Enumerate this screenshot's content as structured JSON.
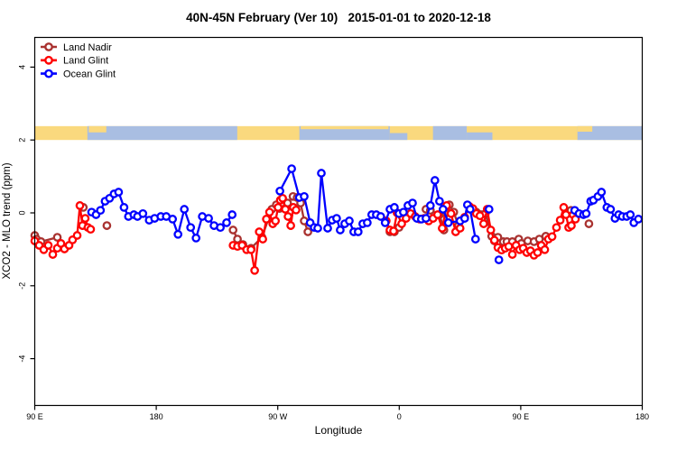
{
  "header": {
    "title": "40N-45N February (Ver 10)",
    "date_range": "2015-01-01 to 2020-12-18",
    "title_separator": "   "
  },
  "chart_data": {
    "type": "line",
    "title": "40N-45N February (Ver 10)   2015-01-01 to 2020-12-18",
    "xlabel": "Longitude",
    "ylabel": "XCO2 - MLO trend (ppm)",
    "x_axis": {
      "note": "longitude axis wraps eastward starting at 90E; deg = degrees east of 90E",
      "range_deg": [
        0,
        450
      ],
      "ticks": [
        {
          "deg": 0,
          "label": "90 E"
        },
        {
          "deg": 90,
          "label": "180"
        },
        {
          "deg": 180,
          "label": "90 W"
        },
        {
          "deg": 270,
          "label": "0"
        },
        {
          "deg": 360,
          "label": "90 E"
        },
        {
          "deg": 450,
          "label": "180"
        }
      ]
    },
    "y_axis": {
      "range": [
        -5.3,
        4.8
      ],
      "ticks": [
        -4,
        -2,
        0,
        2,
        4
      ]
    },
    "legend": {
      "position": "top-left",
      "items": [
        {
          "name": "Land Nadir",
          "color": "#A93230"
        },
        {
          "name": "Land Glint",
          "color": "#FF0000"
        },
        {
          "name": "Ocean Glint",
          "color": "#0000FF"
        }
      ]
    },
    "map_band": {
      "comment": "latitude-strip mini map drawn across the plot near y=2.2 ppm",
      "y_top_value": 2.38,
      "y_bottom_value": 2.0,
      "land_color": "#FAD97E",
      "ocean_color": "#A9BEE2",
      "segments": [
        {
          "from": 39,
          "to": 150,
          "color": "ocean",
          "vspan": [
            0,
            1
          ]
        },
        {
          "from": 196,
          "to": 263,
          "color": "ocean",
          "vspan": [
            0,
            1
          ]
        },
        {
          "from": 402,
          "to": 450,
          "color": "ocean",
          "vspan": [
            0,
            1
          ]
        },
        {
          "from": 40,
          "to": 53,
          "color": "land",
          "vspan": [
            0,
            0.45
          ]
        },
        {
          "from": 197,
          "to": 262,
          "color": "land",
          "vspan": [
            0,
            0.22
          ]
        },
        {
          "from": 263,
          "to": 276,
          "color": "ocean",
          "vspan": [
            0.5,
            1
          ]
        },
        {
          "from": 295,
          "to": 320,
          "color": "ocean",
          "vspan": [
            0,
            1
          ]
        },
        {
          "from": 320,
          "to": 339,
          "color": "ocean",
          "vspan": [
            0.45,
            1
          ]
        },
        {
          "from": 402,
          "to": 413,
          "color": "land",
          "vspan": [
            0,
            0.4
          ]
        }
      ]
    },
    "series": [
      {
        "name": "Land Nadir",
        "color": "#A93230",
        "segments": [
          [
            [
              0,
              -0.62
            ],
            [
              1.3,
              -0.72
            ],
            [
              4.7,
              -0.79
            ],
            [
              16.7,
              -0.67
            ]
          ],
          [
            [
              36.0,
              0.15
            ]
          ],
          [
            [
              53.4,
              -0.35
            ]
          ],
          [
            [
              146.9,
              -0.47
            ],
            [
              150.2,
              -0.72
            ],
            [
              154.2,
              -0.87
            ],
            [
              160.2,
              -0.97
            ],
            [
              168.3,
              -0.67
            ],
            [
              175.6,
              0.1
            ],
            [
              178.9,
              0.22
            ],
            [
              181.3,
              0.12
            ],
            [
              187.3,
              0.27
            ],
            [
              191.3,
              0.45
            ],
            [
              194.3,
              0.42
            ],
            [
              196.9,
              0.27
            ],
            [
              199.6,
              -0.22
            ],
            [
              202.3,
              -0.52
            ]
          ],
          [
            [
              263.1,
              -0.52
            ],
            [
              266.4,
              -0.52
            ],
            [
              269.8,
              -0.4
            ]
          ],
          [
            [
              289.8,
              0.1
            ],
            [
              293.1,
              0.07
            ],
            [
              299.8,
              -0.05
            ],
            [
              303.1,
              -0.47
            ],
            [
              307.1,
              0.22
            ],
            [
              310.4,
              0.02
            ],
            [
              313.8,
              -0.35
            ]
          ],
          [
            [
              327.1,
              0.02
            ],
            [
              330.5,
              -0.05
            ],
            [
              333.8,
              -0.02
            ],
            [
              338.5,
              -0.64
            ],
            [
              340.5,
              -0.77
            ],
            [
              343.1,
              -0.67
            ],
            [
              347.1,
              -0.79
            ],
            [
              349.8,
              -0.79
            ],
            [
              353.8,
              -0.79
            ],
            [
              358.5,
              -0.72
            ],
            [
              360.5,
              -0.84
            ],
            [
              365.2,
              -0.77
            ],
            [
              369.8,
              -0.79
            ],
            [
              373.8,
              -0.72
            ],
            [
              378.5,
              -0.64
            ]
          ],
          [
            [
              397.2,
              0.07
            ]
          ],
          [
            [
              410.5,
              -0.3
            ]
          ]
        ]
      },
      {
        "name": "Land Glint",
        "color": "#FF0000",
        "segments": [
          [
            [
              0,
              -0.77
            ],
            [
              3.3,
              -0.89
            ],
            [
              6.7,
              -1.01
            ],
            [
              10,
              -0.89
            ],
            [
              13.4,
              -1.14
            ],
            [
              16.7,
              -0.97
            ],
            [
              19.4,
              -0.84
            ],
            [
              22,
              -0.99
            ],
            [
              25.4,
              -0.89
            ],
            [
              28,
              -0.74
            ],
            [
              31.4,
              -0.62
            ],
            [
              33.4,
              0.2
            ],
            [
              35.4,
              -0.35
            ],
            [
              37.4,
              -0.15
            ],
            [
              39.4,
              -0.4
            ],
            [
              41.4,
              -0.45
            ]
          ],
          [
            [
              146.9,
              -0.89
            ],
            [
              150.2,
              -0.92
            ],
            [
              153.6,
              -0.89
            ],
            [
              156.9,
              -1.01
            ],
            [
              160.2,
              -1.01
            ],
            [
              162.9,
              -1.58
            ],
            [
              166.3,
              -0.52
            ],
            [
              168.9,
              -0.72
            ],
            [
              171.6,
              -0.17
            ],
            [
              173.9,
              0.02
            ],
            [
              176.3,
              -0.3
            ],
            [
              178.3,
              -0.22
            ],
            [
              180.3,
              0.15
            ],
            [
              181.9,
              0.35
            ],
            [
              183.6,
              0.4
            ],
            [
              185.6,
              0.1
            ],
            [
              187.6,
              -0.1
            ],
            [
              189.6,
              -0.35
            ],
            [
              191.6,
              0.15
            ],
            [
              193.6,
              0.08
            ]
          ],
          [
            [
              260.4,
              -0.22
            ],
            [
              263.1,
              -0.47
            ],
            [
              265.8,
              -0.5
            ],
            [
              268.4,
              0.0
            ],
            [
              271.8,
              -0.3
            ],
            [
              275.1,
              -0.15
            ],
            [
              278.4,
              -0.02
            ],
            [
              281.8,
              -0.1
            ],
            [
              285.1,
              -0.17
            ],
            [
              288.4,
              -0.15
            ],
            [
              291.8,
              -0.22
            ],
            [
              295.1,
              -0.15
            ],
            [
              298.4,
              -0.05
            ],
            [
              301.8,
              -0.42
            ],
            [
              305.1,
              0.2
            ],
            [
              308.4,
              -0.02
            ],
            [
              311.8,
              -0.52
            ],
            [
              315.1,
              -0.42
            ],
            [
              318.5,
              -0.12
            ],
            [
              321.8,
              0.18
            ],
            [
              324.5,
              0.12
            ],
            [
              327.1,
              -0.02
            ],
            [
              329.8,
              -0.08
            ],
            [
              332.5,
              -0.3
            ],
            [
              335.1,
              0.1
            ],
            [
              337.8,
              -0.47
            ],
            [
              340.5,
              -0.75
            ],
            [
              343.1,
              -0.95
            ],
            [
              345.8,
              -1.02
            ],
            [
              348.5,
              -0.97
            ],
            [
              351.1,
              -0.92
            ],
            [
              353.8,
              -1.14
            ],
            [
              356.5,
              -0.89
            ],
            [
              359.2,
              -1.01
            ],
            [
              361.8,
              -0.97
            ],
            [
              364.5,
              -1.09
            ],
            [
              367.2,
              -1.04
            ],
            [
              369.8,
              -1.16
            ],
            [
              372.5,
              -1.09
            ],
            [
              375.2,
              -0.89
            ],
            [
              377.8,
              -1.01
            ],
            [
              380.5,
              -0.72
            ],
            [
              383.2,
              -0.65
            ],
            [
              386.5,
              -0.4
            ],
            [
              389.2,
              -0.2
            ],
            [
              391.8,
              0.15
            ],
            [
              393.5,
              -0.05
            ],
            [
              395.5,
              -0.4
            ],
            [
              397.5,
              -0.35
            ],
            [
              398.8,
              -0.05
            ],
            [
              400.5,
              -0.17
            ]
          ]
        ]
      },
      {
        "name": "Ocean Glint",
        "color": "#0000FF",
        "segments": [
          [
            [
              42.1,
              0.02
            ],
            [
              45.4,
              -0.05
            ],
            [
              48.7,
              0.07
            ],
            [
              52.1,
              0.32
            ],
            [
              55.4,
              0.4
            ],
            [
              58.7,
              0.52
            ],
            [
              62.1,
              0.57
            ],
            [
              66.1,
              0.15
            ],
            [
              69.4,
              -0.1
            ],
            [
              73.4,
              -0.05
            ],
            [
              76.1,
              -0.1
            ],
            [
              80.1,
              -0.02
            ],
            [
              84.8,
              -0.2
            ],
            [
              88.8,
              -0.15
            ],
            [
              93.4,
              -0.1
            ],
            [
              97.4,
              -0.1
            ],
            [
              102.1,
              -0.17
            ],
            [
              106.1,
              -0.59
            ],
            [
              110.8,
              0.1
            ],
            [
              115.5,
              -0.4
            ],
            [
              119.5,
              -0.69
            ],
            [
              124.1,
              -0.1
            ],
            [
              128.8,
              -0.15
            ],
            [
              132.8,
              -0.35
            ],
            [
              137.5,
              -0.4
            ],
            [
              142.1,
              -0.27
            ],
            [
              146.2,
              -0.05
            ]
          ],
          [
            [
              181.6,
              0.6
            ],
            [
              190.3,
              1.21
            ],
            [
              196.0,
              0.42
            ],
            [
              199.6,
              0.45
            ],
            [
              204.0,
              -0.27
            ],
            [
              207.0,
              -0.4
            ],
            [
              209.6,
              -0.42
            ],
            [
              212.3,
              1.09
            ],
            [
              217.0,
              -0.42
            ],
            [
              220.3,
              -0.2
            ],
            [
              223.6,
              -0.15
            ],
            [
              226.3,
              -0.47
            ],
            [
              229.6,
              -0.3
            ],
            [
              233.0,
              -0.22
            ],
            [
              236.3,
              -0.52
            ],
            [
              239.6,
              -0.52
            ],
            [
              243.0,
              -0.3
            ],
            [
              246.3,
              -0.27
            ],
            [
              249.6,
              -0.05
            ],
            [
              253.0,
              -0.05
            ],
            [
              256.3,
              -0.1
            ],
            [
              259.6,
              -0.27
            ],
            [
              263.1,
              0.1
            ],
            [
              266.4,
              0.15
            ],
            [
              269.8,
              -0.02
            ],
            [
              273.1,
              0.02
            ],
            [
              276.4,
              0.2
            ],
            [
              279.8,
              0.27
            ],
            [
              283.1,
              -0.15
            ],
            [
              286.4,
              -0.17
            ],
            [
              289.8,
              -0.15
            ],
            [
              293.1,
              0.2
            ],
            [
              296.4,
              0.89
            ],
            [
              299.8,
              0.32
            ],
            [
              302.4,
              0.1
            ],
            [
              306.4,
              -0.27
            ],
            [
              315.1,
              -0.22
            ],
            [
              318.5,
              -0.15
            ],
            [
              320.5,
              0.22
            ],
            [
              322.5,
              0.1
            ],
            [
              326.5,
              -0.72
            ]
          ],
          [
            [
              336.5,
              0.1
            ]
          ],
          [
            [
              343.8,
              -1.29
            ]
          ],
          [
            [
              400.0,
              0.07
            ],
            [
              403.2,
              -0.02
            ],
            [
              406.5,
              -0.05
            ],
            [
              408.5,
              -0.02
            ],
            [
              411.8,
              0.32
            ],
            [
              413.8,
              0.35
            ],
            [
              417.2,
              0.45
            ],
            [
              419.8,
              0.57
            ],
            [
              423.8,
              0.15
            ],
            [
              426.5,
              0.1
            ],
            [
              429.8,
              -0.15
            ],
            [
              432.5,
              -0.05
            ],
            [
              435.2,
              -0.1
            ],
            [
              438.5,
              -0.1
            ],
            [
              441.2,
              -0.05
            ],
            [
              443.8,
              -0.27
            ],
            [
              447.2,
              -0.17
            ]
          ]
        ]
      }
    ]
  }
}
